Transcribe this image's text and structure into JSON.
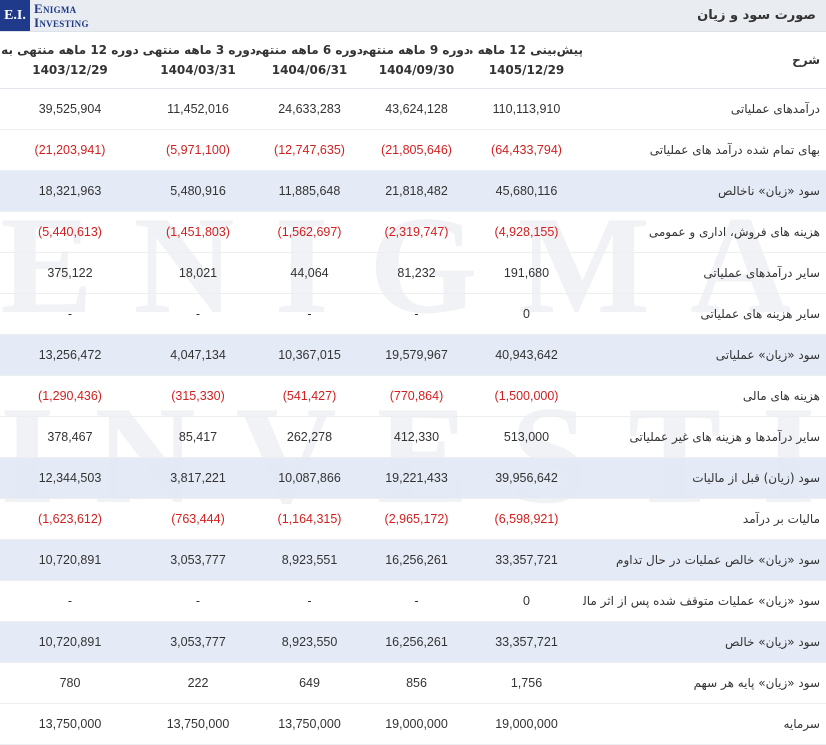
{
  "header": {
    "logo_mark": "E.I.",
    "logo_line1": "Enigma",
    "logo_line2": "Investing",
    "title": "صورت سود و زیان"
  },
  "watermark": {
    "line1": "ENIGMA",
    "line2": "INVESTING"
  },
  "colors": {
    "negative": "#d21f1f",
    "highlight_row": "#e1e7f5",
    "brand": "#1f3a8a"
  },
  "columns": {
    "label": "شرح",
    "periods": [
      {
        "line1": "پیش‌بینی 12 ماهه منتهی به",
        "line2": "1405/12/29"
      },
      {
        "line1": "دوره 9 ماهه منتهی به",
        "line2": "1404/09/30"
      },
      {
        "line1": "دوره 6 ماهه منتهی به",
        "line2": "1404/06/31"
      },
      {
        "line1": "دوره 3 ماهه منتهی به",
        "line2": "1404/03/31"
      },
      {
        "line1": "دوره 12 ماهه منتهی به",
        "line2": "1403/12/29"
      }
    ]
  },
  "rows": [
    {
      "label": "درآمدهای عملیاتی",
      "highlight": false,
      "values": [
        "110,113,910",
        "43,624,128",
        "24,633,283",
        "11,452,016",
        "39,525,904"
      ]
    },
    {
      "label": "بهای تمام شده درآمد های عملیاتی",
      "highlight": false,
      "values": [
        "(64,433,794)",
        "(21,805,646)",
        "(12,747,635)",
        "(5,971,100)",
        "(21,203,941)"
      ]
    },
    {
      "label": "سود «زیان» ناخالص",
      "highlight": true,
      "values": [
        "45,680,116",
        "21,818,482",
        "11,885,648",
        "5,480,916",
        "18,321,963"
      ]
    },
    {
      "label": "هزینه های فروش، اداری و عمومی",
      "highlight": false,
      "values": [
        "(4,928,155)",
        "(2,319,747)",
        "(1,562,697)",
        "(1,451,803)",
        "(5,440,613)"
      ]
    },
    {
      "label": "سایر درآمدهای عملیاتی",
      "highlight": false,
      "values": [
        "191,680",
        "81,232",
        "44,064",
        "18,021",
        "375,122"
      ]
    },
    {
      "label": "سایر هزینه های عملیاتی",
      "highlight": false,
      "values": [
        "0",
        "-",
        "-",
        "-",
        "-"
      ]
    },
    {
      "label": "سود «زیان» عملیاتی",
      "highlight": true,
      "values": [
        "40,943,642",
        "19,579,967",
        "10,367,015",
        "4,047,134",
        "13,256,472"
      ]
    },
    {
      "label": "هزینه های مالی",
      "highlight": false,
      "values": [
        "(1,500,000)",
        "(770,864)",
        "(541,427)",
        "(315,330)",
        "(1,290,436)"
      ]
    },
    {
      "label": "سایر درآمدها و هزینه های غیر عملیاتی",
      "highlight": false,
      "values": [
        "513,000",
        "412,330",
        "262,278",
        "85,417",
        "378,467"
      ]
    },
    {
      "label": "سود (زیان) قبل از مالیات",
      "highlight": true,
      "values": [
        "39,956,642",
        "19,221,433",
        "10,087,866",
        "3,817,221",
        "12,344,503"
      ]
    },
    {
      "label": "مالیات بر درآمد",
      "highlight": false,
      "values": [
        "(6,598,921)",
        "(2,965,172)",
        "(1,164,315)",
        "(763,444)",
        "(1,623,612)"
      ]
    },
    {
      "label": "سود «زیان» خالص عملیات در حال تداوم",
      "highlight": true,
      "values": [
        "33,357,721",
        "16,256,261",
        "8,923,551",
        "3,053,777",
        "10,720,891"
      ]
    },
    {
      "label": "سود «زیان» عملیات متوقف شده پس از اثر مالیاتی",
      "highlight": false,
      "values": [
        "0",
        "-",
        "-",
        "-",
        "-"
      ]
    },
    {
      "label": "سود «زیان» خالص",
      "highlight": true,
      "values": [
        "33,357,721",
        "16,256,261",
        "8,923,550",
        "3,053,777",
        "10,720,891"
      ]
    },
    {
      "label": "سود «زیان» پایه هر سهم",
      "highlight": false,
      "values": [
        "1,756",
        "856",
        "649",
        "222",
        "780"
      ]
    },
    {
      "label": "سرمایه",
      "highlight": false,
      "values": [
        "19,000,000",
        "19,000,000",
        "13,750,000",
        "13,750,000",
        "13,750,000"
      ]
    }
  ]
}
